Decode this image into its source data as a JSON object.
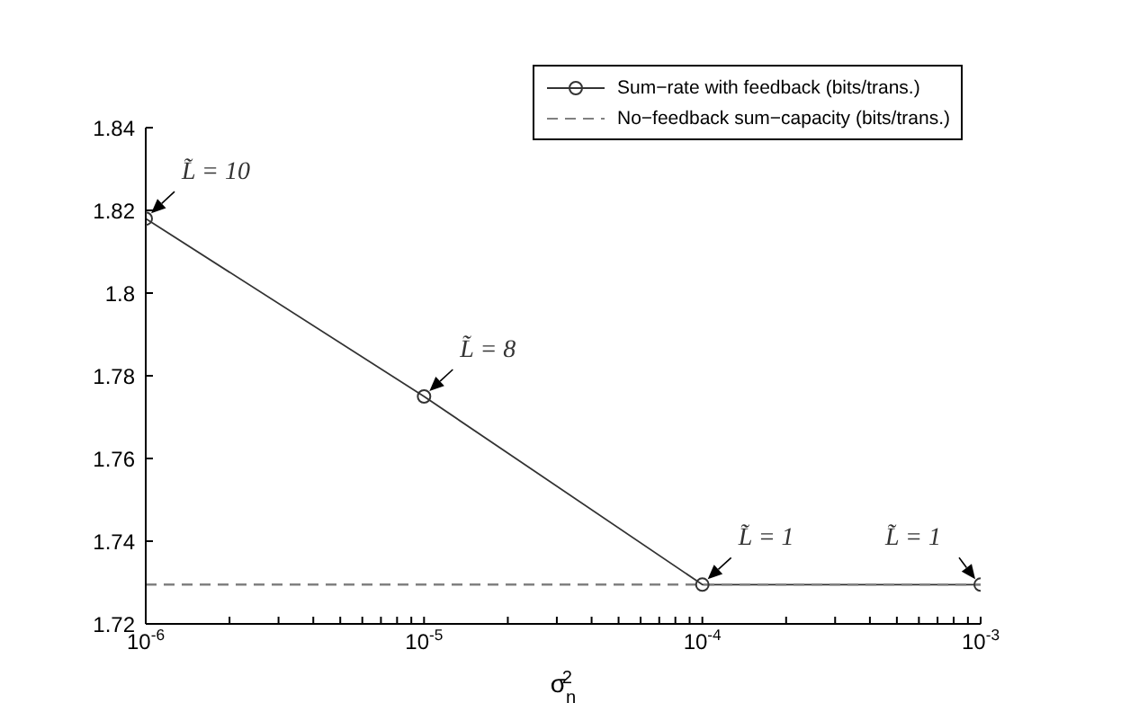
{
  "chart_data": {
    "type": "line",
    "xlabel": "σ$_{n}$$^{2}$",
    "log": "x",
    "x": [
      1e-06,
      1e-05,
      0.0001,
      0.001
    ],
    "xlim": [
      1e-06,
      0.001
    ],
    "xticks": [
      {
        "value": 1e-06,
        "label": "10$^{-6}$"
      },
      {
        "value": 2e-06,
        "label": null
      },
      {
        "value": 3e-06,
        "label": null
      },
      {
        "value": 4e-06,
        "label": null
      },
      {
        "value": 5e-06,
        "label": null
      },
      {
        "value": 6e-06,
        "label": null
      },
      {
        "value": 7e-06,
        "label": null
      },
      {
        "value": 8e-06,
        "label": null
      },
      {
        "value": 9e-06,
        "label": null
      },
      {
        "value": 1e-05,
        "label": "10$^{-5}$"
      },
      {
        "value": 2e-05,
        "label": null
      },
      {
        "value": 3e-05,
        "label": null
      },
      {
        "value": 4e-05,
        "label": null
      },
      {
        "value": 5e-05,
        "label": null
      },
      {
        "value": 6e-05,
        "label": null
      },
      {
        "value": 7e-05,
        "label": null
      },
      {
        "value": 8e-05,
        "label": null
      },
      {
        "value": 9e-05,
        "label": null
      },
      {
        "value": 0.0001,
        "label": "10$^{-4}$"
      },
      {
        "value": 0.0002,
        "label": null
      },
      {
        "value": 0.0003,
        "label": null
      },
      {
        "value": 0.0004,
        "label": null
      },
      {
        "value": 0.0005,
        "label": null
      },
      {
        "value": 0.0006,
        "label": null
      },
      {
        "value": 0.0007,
        "label": null
      },
      {
        "value": 0.0008,
        "label": null
      },
      {
        "value": 0.0009,
        "label": null
      },
      {
        "value": 0.001,
        "label": "10$^{-3}$"
      }
    ],
    "ylim": [
      1.72,
      1.84
    ],
    "yticks": [
      1.72,
      1.74,
      1.76,
      1.78,
      1.8,
      1.82,
      1.84
    ],
    "grid": false,
    "legend": "top right",
    "series": [
      {
        "name": "Sum−rate with feedback (bits/trans.)",
        "color": "#333333",
        "values": [
          1.818,
          1.775,
          1.7295,
          1.7295
        ],
        "marker": "circle",
        "line_style": "solid"
      },
      {
        "name": "No−feedback sum−capacity (bits/trans.)",
        "color": "#808080",
        "values": [
          1.7295,
          1.7295,
          1.7295,
          1.7295
        ],
        "marker": "none",
        "line_style": "dashed"
      }
    ],
    "annotations": [
      {
        "text": "L̃ = 10",
        "x": 1e-06,
        "y": 1.818
      },
      {
        "text": "L̃ = 8",
        "x": 1e-05,
        "y": 1.775
      },
      {
        "text": "L̃ = 1",
        "x": 0.0001,
        "y": 1.7295
      },
      {
        "text": "L̃ = 1",
        "x": 0.001,
        "y": 1.7295
      }
    ]
  }
}
